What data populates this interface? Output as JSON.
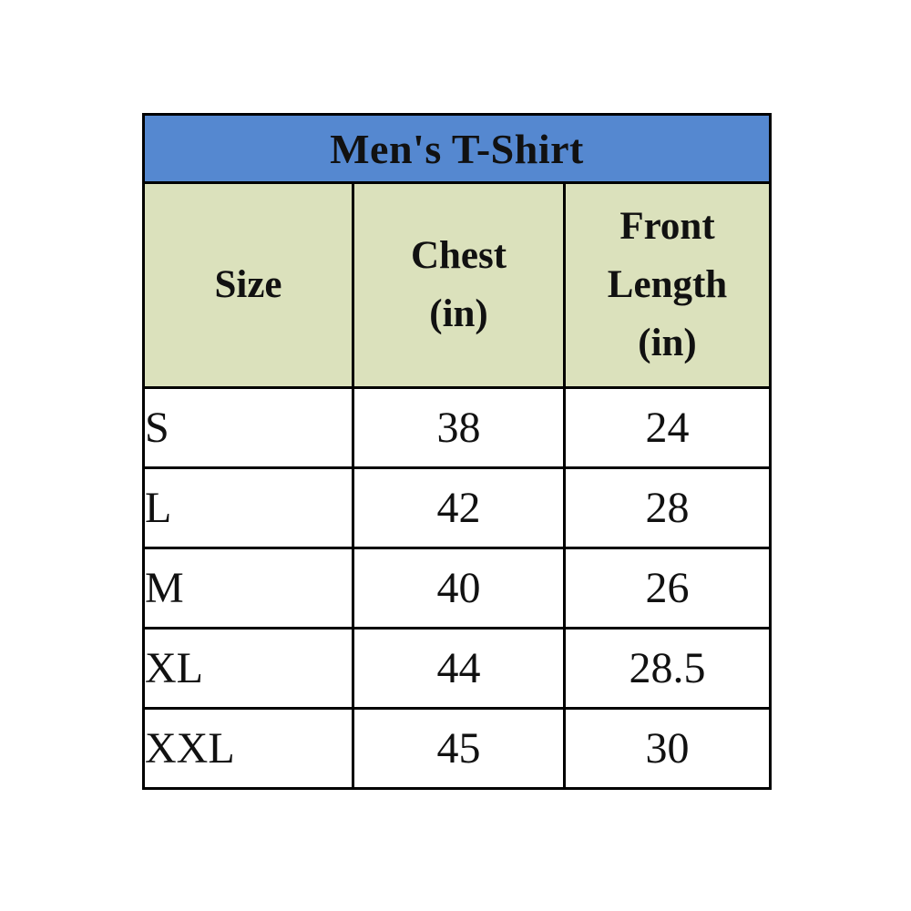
{
  "page": {
    "background_color": "#ffffff"
  },
  "table": {
    "title": "Men's T-Shirt",
    "title_bg_color": "#5588d0",
    "header_bg_color": "#dbe1bc",
    "border_color": "#000000",
    "text_color": "#111111",
    "columns": [
      {
        "label": "Size",
        "lines": [
          "Size"
        ]
      },
      {
        "label": "Chest (in)",
        "lines": [
          "Chest",
          "(in)"
        ]
      },
      {
        "label": "Front Length (in)",
        "lines": [
          "Front",
          "Length",
          "(in)"
        ]
      }
    ],
    "rows": [
      {
        "size": "S",
        "chest": "38",
        "front_length": "24"
      },
      {
        "size": "L",
        "chest": "42",
        "front_length": "28"
      },
      {
        "size": "M",
        "chest": "40",
        "front_length": "26"
      },
      {
        "size": "XL",
        "chest": "44",
        "front_length": "28.5"
      },
      {
        "size": "XXL",
        "chest": "45",
        "front_length": "30"
      }
    ]
  },
  "chart_data": {
    "type": "table",
    "title": "Men's T-Shirt",
    "columns": [
      "Size",
      "Chest (in)",
      "Front Length (in)"
    ],
    "rows": [
      [
        "S",
        38,
        24
      ],
      [
        "L",
        42,
        28
      ],
      [
        "M",
        40,
        26
      ],
      [
        "XL",
        44,
        28.5
      ],
      [
        "XXL",
        45,
        30
      ]
    ],
    "units": "inches"
  }
}
